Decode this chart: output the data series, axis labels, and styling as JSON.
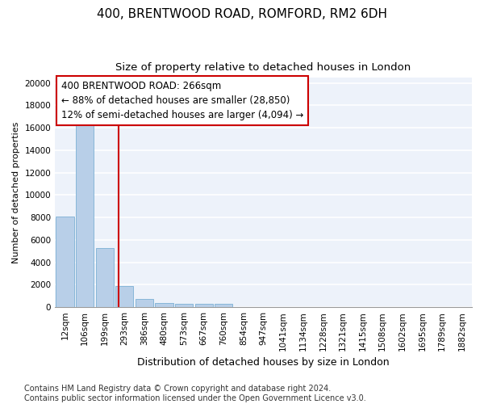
{
  "title": "400, BRENTWOOD ROAD, ROMFORD, RM2 6DH",
  "subtitle": "Size of property relative to detached houses in London",
  "xlabel": "Distribution of detached houses by size in London",
  "ylabel": "Number of detached properties",
  "categories": [
    "12sqm",
    "106sqm",
    "199sqm",
    "293sqm",
    "386sqm",
    "480sqm",
    "573sqm",
    "667sqm",
    "760sqm",
    "854sqm",
    "947sqm",
    "1041sqm",
    "1134sqm",
    "1228sqm",
    "1321sqm",
    "1415sqm",
    "1508sqm",
    "1602sqm",
    "1695sqm",
    "1789sqm",
    "1882sqm"
  ],
  "values": [
    8100,
    16500,
    5300,
    1850,
    750,
    370,
    290,
    310,
    290,
    0,
    0,
    0,
    0,
    0,
    0,
    0,
    0,
    0,
    0,
    0,
    0
  ],
  "bar_color": "#b8cfe8",
  "bar_edge_color": "#7bafd4",
  "vline_color": "#cc0000",
  "annotation_text": "400 BRENTWOOD ROAD: 266sqm\n← 88% of detached houses are smaller (28,850)\n12% of semi-detached houses are larger (4,094) →",
  "annotation_box_color": "#ffffff",
  "annotation_box_edge": "#cc0000",
  "footnote": "Contains HM Land Registry data © Crown copyright and database right 2024.\nContains public sector information licensed under the Open Government Licence v3.0.",
  "ylim": [
    0,
    20500
  ],
  "yticks": [
    0,
    2000,
    4000,
    6000,
    8000,
    10000,
    12000,
    14000,
    16000,
    18000,
    20000
  ],
  "background_color": "#edf2fa",
  "grid_color": "#ffffff",
  "title_fontsize": 11,
  "subtitle_fontsize": 9.5,
  "xlabel_fontsize": 9,
  "ylabel_fontsize": 8,
  "tick_fontsize": 7.5,
  "annotation_fontsize": 8.5,
  "footnote_fontsize": 7
}
